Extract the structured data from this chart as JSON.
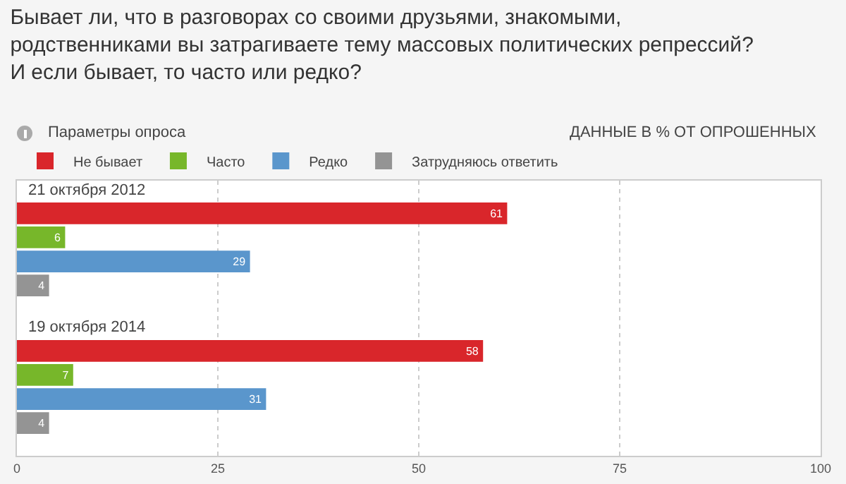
{
  "chart_data": {
    "type": "bar",
    "orientation": "horizontal",
    "title": "Бывает ли, что в разговорах со своими друзьями, знакомыми,\nродственниками вы затрагиваете тему массовых политических репрессий?\nИ если бывает, то часто или редко?",
    "annotations": [
      "Параметры опроса",
      "ДАННЫЕ В % ОТ ОПРОШЕННЫХ"
    ],
    "categories": [
      "21 октября 2012",
      "19 октября 2014"
    ],
    "series": [
      {
        "name": "Не бывает",
        "color": "#d9262b",
        "values": [
          61,
          58
        ]
      },
      {
        "name": "Часто",
        "color": "#77b72a",
        "values": [
          6,
          7
        ]
      },
      {
        "name": "Редко",
        "color": "#5a96cc",
        "values": [
          29,
          31
        ]
      },
      {
        "name": "Затрудняюсь ответить",
        "color": "#949494",
        "values": [
          4,
          4
        ]
      }
    ],
    "xlim": [
      0,
      100
    ],
    "xticks": [
      0,
      25,
      50,
      75,
      100
    ],
    "grid": "x",
    "legend": "top left",
    "data_labels": true
  }
}
